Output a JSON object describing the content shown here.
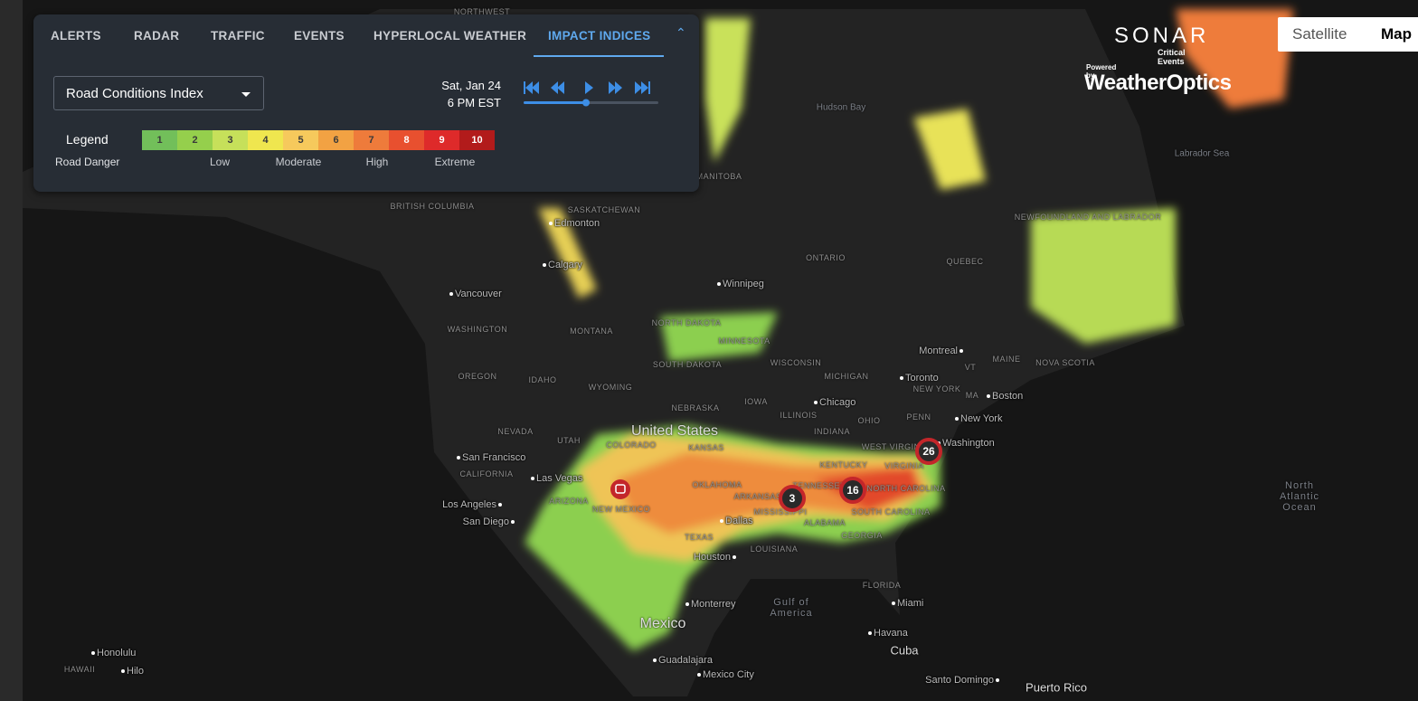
{
  "tabs": {
    "items": [
      "ALERTS",
      "RADAR",
      "TRAFFIC",
      "EVENTS",
      "HYPERLOCAL WEATHER",
      "IMPACT INDICES"
    ],
    "active": 5
  },
  "controls": {
    "index_select": "Road Conditions Index",
    "date": "Sat, Jan 24",
    "time": "6 PM EST"
  },
  "legend": {
    "title": "Legend",
    "subtitle": "Road Danger",
    "levels": [
      1,
      2,
      3,
      4,
      5,
      6,
      7,
      8,
      9,
      10
    ],
    "colors": [
      "#72bf5a",
      "#95cf4c",
      "#c6e05a",
      "#efe64f",
      "#f6c95c",
      "#f2a243",
      "#ee7b3b",
      "#e8502f",
      "#de2a2a",
      "#b21b1b"
    ],
    "level_names": [
      "Low",
      "Moderate",
      "High",
      "Extreme"
    ]
  },
  "brand": {
    "name": "SONAR",
    "tagline": "Critical Events",
    "powered": "Powered by",
    "partner": "WeatherOptics"
  },
  "map_type": {
    "options": [
      "Satellite",
      "Map"
    ],
    "active": 1
  },
  "clusters": [
    26,
    16,
    3
  ],
  "map": {
    "cities": [
      "Edmonton",
      "Calgary",
      "Vancouver",
      "Winnipeg",
      "Montreal",
      "Toronto",
      "Boston",
      "New York",
      "Washington",
      "Chicago",
      "San Francisco",
      "Las Vegas",
      "Los Angeles",
      "San Diego",
      "Dallas",
      "Houston",
      "Monterrey",
      "Miami",
      "Havana",
      "Guadalajara",
      "Mexico City",
      "Honolulu",
      "Hilo",
      "Santo Domingo"
    ],
    "regions": [
      "United States",
      "Mexico",
      "Cuba",
      "Puerto Rico",
      "Hudson Bay",
      "Labrador Sea",
      "North Atlantic Ocean",
      "Gulf of America",
      "NORTHWEST",
      "BRITISH COLUMBIA",
      "SASKATCHEWAN",
      "MANITOBA",
      "ONTARIO",
      "QUEBEC",
      "NEWFOUNDLAND AND LABRADOR",
      "NOVA SCOTIA",
      "WASHINGTON",
      "OREGON",
      "IDAHO",
      "MONTANA",
      "WYOMING",
      "NEVADA",
      "UTAH",
      "CALIFORNIA",
      "ARIZONA",
      "NEW MEXICO",
      "COLORADO",
      "KANSAS",
      "NEBRASKA",
      "SOUTH DAKOTA",
      "NORTH DAKOTA",
      "MINNESOTA",
      "IOWA",
      "WISCONSIN",
      "MICHIGAN",
      "ILLINOIS",
      "INDIANA",
      "OHIO",
      "PENN",
      "NEW YORK",
      "MAINE",
      "VT",
      "MA",
      "KENTUCKY",
      "TENNESSEE",
      "WEST VIRGINIA",
      "VIRGINIA",
      "NORTH CAROLINA",
      "SOUTH CAROLINA",
      "GEORGIA",
      "ALABAMA",
      "MISSISSIPPI",
      "ARKANSAS",
      "OKLAHOMA",
      "TEXAS",
      "LOUISIANA",
      "FLORIDA",
      "HAWAII"
    ]
  }
}
